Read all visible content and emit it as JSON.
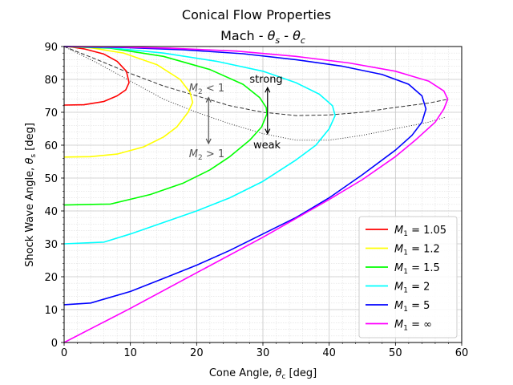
{
  "chart_data": {
    "type": "line",
    "title": "Conical Flow Properties",
    "subtitle_parts": [
      "Mach - ",
      "θ",
      "s",
      " - ",
      "θ",
      "c"
    ],
    "xlabel_parts": [
      "Cone Angle, ",
      "θ",
      "c",
      " [deg]"
    ],
    "ylabel_parts": [
      "Shock Wave Angle, ",
      "θ",
      "s",
      " [deg]"
    ],
    "xlim": [
      0,
      60
    ],
    "ylim": [
      0,
      90
    ],
    "xticks": [
      "0",
      "10",
      "20",
      "30",
      "40",
      "50",
      "60"
    ],
    "yticks": [
      "0",
      "10",
      "20",
      "30",
      "40",
      "50",
      "60",
      "70",
      "80",
      "90"
    ],
    "grid": true,
    "minor_grid": true,
    "legend_position": "bottom-right",
    "series": [
      {
        "name": "1.05",
        "legend_prefix": "M",
        "legend_sub": "1",
        "color": "#ff0000",
        "points": [
          [
            0,
            72.2
          ],
          [
            3,
            72.3
          ],
          [
            6,
            73.3
          ],
          [
            8,
            75
          ],
          [
            9.3,
            76.8
          ],
          [
            9.8,
            79
          ],
          [
            9.4,
            82.5
          ],
          [
            8,
            85.5
          ],
          [
            6,
            87.7
          ],
          [
            3,
            89.3
          ],
          [
            1,
            89.9
          ],
          [
            0,
            90
          ]
        ]
      },
      {
        "name": "1.2",
        "legend_prefix": "M",
        "legend_sub": "1",
        "color": "#ffff00",
        "points": [
          [
            0,
            56.4
          ],
          [
            4,
            56.5
          ],
          [
            8,
            57.3
          ],
          [
            12,
            59.5
          ],
          [
            15,
            62.5
          ],
          [
            17,
            65.5
          ],
          [
            18.7,
            70
          ],
          [
            19.4,
            73
          ],
          [
            19,
            76
          ],
          [
            17.5,
            80
          ],
          [
            14,
            84.5
          ],
          [
            9,
            88
          ],
          [
            4,
            89.6
          ],
          [
            0,
            90
          ]
        ]
      },
      {
        "name": "1.5",
        "legend_prefix": "M",
        "legend_sub": "1",
        "color": "#00ff00",
        "points": [
          [
            0,
            41.8
          ],
          [
            7,
            42.1
          ],
          [
            13,
            45
          ],
          [
            18,
            48.5
          ],
          [
            22,
            52.5
          ],
          [
            25,
            56.5
          ],
          [
            28,
            61.5
          ],
          [
            29.8,
            65.5
          ],
          [
            30.6,
            69.5
          ],
          [
            30.5,
            71.5
          ],
          [
            29.5,
            74.5
          ],
          [
            27,
            78.5
          ],
          [
            22,
            83
          ],
          [
            15,
            87
          ],
          [
            7,
            89.5
          ],
          [
            0,
            90
          ]
        ]
      },
      {
        "name": "2",
        "legend_prefix": "M",
        "legend_sub": "1",
        "color": "#00ffff",
        "points": [
          [
            0,
            30
          ],
          [
            6,
            30.5
          ],
          [
            10,
            33
          ],
          [
            15,
            36.5
          ],
          [
            20,
            40
          ],
          [
            25,
            44
          ],
          [
            30,
            49
          ],
          [
            35,
            55.5
          ],
          [
            38,
            60
          ],
          [
            40,
            65
          ],
          [
            40.9,
            69
          ],
          [
            40.5,
            72
          ],
          [
            38.5,
            75.5
          ],
          [
            35,
            79
          ],
          [
            30,
            82.5
          ],
          [
            23,
            85.5
          ],
          [
            15,
            88
          ],
          [
            7,
            89.6
          ],
          [
            0,
            90
          ]
        ]
      },
      {
        "name": "5",
        "legend_prefix": "M",
        "legend_sub": "1",
        "color": "#0000ff",
        "points": [
          [
            0,
            11.5
          ],
          [
            4,
            12
          ],
          [
            10,
            15.5
          ],
          [
            15,
            19.5
          ],
          [
            20,
            23.5
          ],
          [
            25,
            28
          ],
          [
            30,
            33
          ],
          [
            35,
            38
          ],
          [
            40,
            44
          ],
          [
            45,
            51
          ],
          [
            50,
            58.5
          ],
          [
            52.5,
            63
          ],
          [
            54,
            67
          ],
          [
            54.6,
            71
          ],
          [
            54,
            75
          ],
          [
            52,
            78.5
          ],
          [
            48,
            81.5
          ],
          [
            42,
            84
          ],
          [
            35,
            86
          ],
          [
            27,
            87.8
          ],
          [
            18,
            89
          ],
          [
            9,
            89.7
          ],
          [
            0,
            90
          ]
        ]
      },
      {
        "name": "∞",
        "legend_prefix": "M",
        "legend_sub": "1",
        "color": "#ff00ff",
        "points": [
          [
            0,
            0
          ],
          [
            10,
            10.4
          ],
          [
            20,
            21.2
          ],
          [
            30,
            32
          ],
          [
            40,
            43.5
          ],
          [
            45,
            49.5
          ],
          [
            50,
            56.5
          ],
          [
            53,
            61.5
          ],
          [
            56,
            67
          ],
          [
            57.3,
            71
          ],
          [
            57.9,
            74
          ],
          [
            57.3,
            76.5
          ],
          [
            55,
            79.5
          ],
          [
            50,
            82.5
          ],
          [
            43,
            85
          ],
          [
            35,
            87
          ],
          [
            26,
            88.6
          ],
          [
            16,
            89.5
          ],
          [
            7,
            89.9
          ],
          [
            0,
            90
          ]
        ]
      }
    ],
    "reference_curves": [
      {
        "name": "M2=1",
        "style": "dashed",
        "color": "#333333",
        "points": [
          [
            0,
            90
          ],
          [
            5,
            86
          ],
          [
            10,
            81.8
          ],
          [
            15,
            78
          ],
          [
            20,
            75
          ],
          [
            25,
            72
          ],
          [
            30,
            70
          ],
          [
            35,
            69
          ],
          [
            40,
            69.2
          ],
          [
            45,
            70
          ],
          [
            50,
            71.5
          ],
          [
            55,
            72.8
          ],
          [
            58,
            74
          ]
        ]
      },
      {
        "name": "max cone angle",
        "style": "dotted",
        "color": "#333333",
        "points": [
          [
            0,
            90
          ],
          [
            5,
            85
          ],
          [
            10,
            79.5
          ],
          [
            15,
            74
          ],
          [
            20,
            70
          ],
          [
            25,
            66.5
          ],
          [
            30,
            63.5
          ],
          [
            35,
            61.5
          ],
          [
            40,
            61.5
          ],
          [
            45,
            63
          ],
          [
            50,
            65
          ],
          [
            55,
            67
          ],
          [
            57.5,
            68.5
          ]
        ]
      }
    ],
    "annotations": {
      "strong": "strong",
      "weak": "weak",
      "m2_lt_prefix": "M",
      "m2_lt_sub": "2",
      "m2_lt_suffix": " < 1",
      "m2_gt_prefix": "M",
      "m2_gt_sub": "2",
      "m2_gt_suffix": " > 1"
    },
    "arrows": [
      {
        "name": "strong-weak-arrow",
        "x": 30.7,
        "y_top": 77.5,
        "y_bottom": 63.5,
        "color": "#000000"
      },
      {
        "name": "mach-region-arrow",
        "x": 21.8,
        "y_top": 74.5,
        "y_bottom": 60.5,
        "color": "#555555"
      }
    ]
  }
}
